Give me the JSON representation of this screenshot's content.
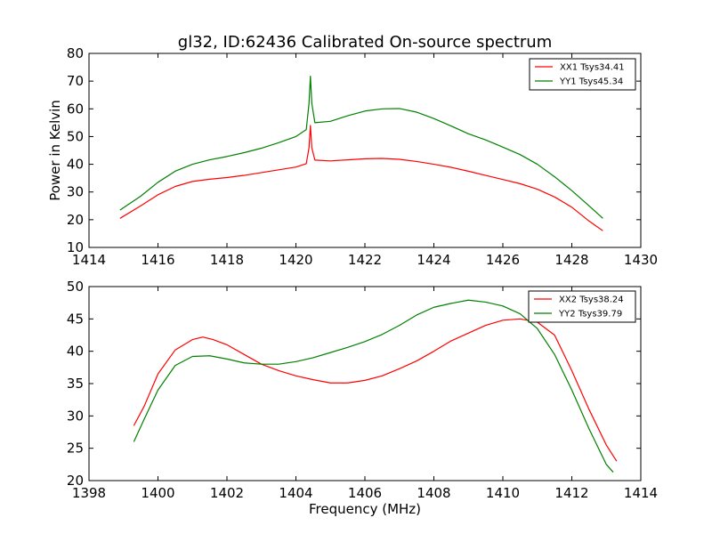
{
  "chart_data": [
    {
      "type": "line",
      "title": "gl32, ID:62436 Calibrated On-source spectrum",
      "xlabel": "",
      "ylabel": "Power in Kelvin",
      "xlim": [
        1414,
        1430
      ],
      "ylim": [
        10,
        80
      ],
      "xticks": [
        1414,
        1416,
        1418,
        1420,
        1422,
        1424,
        1426,
        1428,
        1430
      ],
      "yticks": [
        10,
        20,
        30,
        40,
        50,
        60,
        70,
        80
      ],
      "legend_position": "top-right",
      "grid": false,
      "series": [
        {
          "name": "XX1 Tsys34.41",
          "color": "#ff0000",
          "points": [
            [
              1414.9,
              20.5
            ],
            [
              1415.5,
              25.0
            ],
            [
              1416.0,
              29.0
            ],
            [
              1416.5,
              32.0
            ],
            [
              1417.0,
              33.8
            ],
            [
              1417.5,
              34.6
            ],
            [
              1418.0,
              35.2
            ],
            [
              1418.5,
              36.0
            ],
            [
              1419.0,
              37.0
            ],
            [
              1419.5,
              38.0
            ],
            [
              1420.0,
              39.0
            ],
            [
              1420.3,
              40.2
            ],
            [
              1420.38,
              46.0
            ],
            [
              1420.42,
              54.0
            ],
            [
              1420.46,
              46.0
            ],
            [
              1420.55,
              41.5
            ],
            [
              1421.0,
              41.2
            ],
            [
              1421.5,
              41.6
            ],
            [
              1422.0,
              42.0
            ],
            [
              1422.5,
              42.1
            ],
            [
              1423.0,
              41.8
            ],
            [
              1423.5,
              41.0
            ],
            [
              1424.0,
              40.0
            ],
            [
              1424.5,
              38.9
            ],
            [
              1425.0,
              37.5
            ],
            [
              1425.5,
              36.0
            ],
            [
              1426.0,
              34.5
            ],
            [
              1426.5,
              33.0
            ],
            [
              1427.0,
              31.0
            ],
            [
              1427.5,
              28.2
            ],
            [
              1428.0,
              24.5
            ],
            [
              1428.5,
              19.5
            ],
            [
              1428.9,
              16.0
            ]
          ]
        },
        {
          "name": "YY1 Tsys45.34",
          "color": "#008000",
          "points": [
            [
              1414.9,
              23.5
            ],
            [
              1415.5,
              28.5
            ],
            [
              1416.0,
              33.5
            ],
            [
              1416.5,
              37.5
            ],
            [
              1417.0,
              40.0
            ],
            [
              1417.5,
              41.6
            ],
            [
              1418.0,
              42.8
            ],
            [
              1418.5,
              44.2
            ],
            [
              1419.0,
              45.8
            ],
            [
              1419.5,
              47.8
            ],
            [
              1420.0,
              50.0
            ],
            [
              1420.3,
              52.5
            ],
            [
              1420.38,
              62.0
            ],
            [
              1420.42,
              71.8
            ],
            [
              1420.46,
              62.0
            ],
            [
              1420.55,
              55.0
            ],
            [
              1421.0,
              55.5
            ],
            [
              1421.5,
              57.5
            ],
            [
              1422.0,
              59.2
            ],
            [
              1422.5,
              60.0
            ],
            [
              1423.0,
              60.1
            ],
            [
              1423.5,
              58.8
            ],
            [
              1424.0,
              56.5
            ],
            [
              1424.5,
              53.8
            ],
            [
              1425.0,
              51.0
            ],
            [
              1425.5,
              48.8
            ],
            [
              1426.0,
              46.2
            ],
            [
              1426.5,
              43.5
            ],
            [
              1427.0,
              40.0
            ],
            [
              1427.5,
              35.5
            ],
            [
              1428.0,
              30.5
            ],
            [
              1428.5,
              25.0
            ],
            [
              1428.9,
              20.5
            ]
          ]
        }
      ]
    },
    {
      "type": "line",
      "title": "",
      "xlabel": "Frequency (MHz)",
      "ylabel": "",
      "xlim": [
        1398,
        1414
      ],
      "ylim": [
        20,
        50
      ],
      "xticks": [
        1398,
        1400,
        1402,
        1404,
        1406,
        1408,
        1410,
        1412,
        1414
      ],
      "yticks": [
        20,
        25,
        30,
        35,
        40,
        45,
        50
      ],
      "legend_position": "top-right",
      "grid": false,
      "series": [
        {
          "name": "XX2 Tsys38.24",
          "color": "#ff0000",
          "points": [
            [
              1399.3,
              28.5
            ],
            [
              1399.6,
              31.5
            ],
            [
              1400.0,
              36.5
            ],
            [
              1400.5,
              40.2
            ],
            [
              1401.0,
              41.8
            ],
            [
              1401.3,
              42.2
            ],
            [
              1401.6,
              41.8
            ],
            [
              1402.0,
              41.0
            ],
            [
              1402.5,
              39.5
            ],
            [
              1403.0,
              38.0
            ],
            [
              1403.5,
              37.0
            ],
            [
              1404.0,
              36.2
            ],
            [
              1404.5,
              35.6
            ],
            [
              1405.0,
              35.1
            ],
            [
              1405.5,
              35.1
            ],
            [
              1406.0,
              35.5
            ],
            [
              1406.5,
              36.2
            ],
            [
              1407.0,
              37.3
            ],
            [
              1407.5,
              38.5
            ],
            [
              1408.0,
              40.0
            ],
            [
              1408.5,
              41.6
            ],
            [
              1409.0,
              42.8
            ],
            [
              1409.5,
              44.0
            ],
            [
              1410.0,
              44.8
            ],
            [
              1410.5,
              45.0
            ],
            [
              1411.0,
              44.5
            ],
            [
              1411.5,
              42.5
            ],
            [
              1412.0,
              37.0
            ],
            [
              1412.5,
              31.0
            ],
            [
              1413.0,
              25.5
            ],
            [
              1413.3,
              23.0
            ]
          ]
        },
        {
          "name": "YY2 Tsys39.79",
          "color": "#008000",
          "points": [
            [
              1399.3,
              26.0
            ],
            [
              1399.6,
              29.5
            ],
            [
              1400.0,
              34.0
            ],
            [
              1400.5,
              37.8
            ],
            [
              1401.0,
              39.2
            ],
            [
              1401.5,
              39.3
            ],
            [
              1402.0,
              38.8
            ],
            [
              1402.5,
              38.2
            ],
            [
              1403.0,
              38.0
            ],
            [
              1403.5,
              38.0
            ],
            [
              1404.0,
              38.4
            ],
            [
              1404.5,
              39.0
            ],
            [
              1405.0,
              39.8
            ],
            [
              1405.5,
              40.6
            ],
            [
              1406.0,
              41.5
            ],
            [
              1406.5,
              42.6
            ],
            [
              1407.0,
              44.0
            ],
            [
              1407.5,
              45.6
            ],
            [
              1408.0,
              46.8
            ],
            [
              1408.5,
              47.4
            ],
            [
              1409.0,
              47.9
            ],
            [
              1409.5,
              47.6
            ],
            [
              1410.0,
              47.0
            ],
            [
              1410.5,
              45.8
            ],
            [
              1411.0,
              43.5
            ],
            [
              1411.5,
              39.5
            ],
            [
              1412.0,
              34.0
            ],
            [
              1412.5,
              28.0
            ],
            [
              1413.0,
              22.5
            ],
            [
              1413.2,
              21.3
            ]
          ]
        }
      ]
    }
  ]
}
